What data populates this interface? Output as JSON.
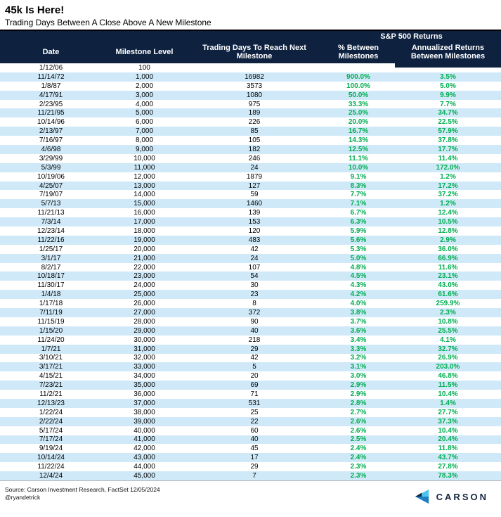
{
  "chart_data": {
    "type": "table",
    "title": "45k Is Here!",
    "subtitle": "Trading Days Between A Close Above A New Milestone",
    "group_label": "S&P 500 Returns",
    "group_label_covers": [
      "% Between Milestones",
      "Annualized Returns Between Milestones"
    ],
    "columns": [
      "Date",
      "Milestone Level",
      "Trading Days To Reach Next Milestone",
      "% Between Milestones",
      "Annualized Returns Between Milestones"
    ],
    "rows": [
      [
        "1/12/06",
        "100",
        "",
        "",
        ""
      ],
      [
        "11/14/72",
        "1,000",
        "16982",
        "900.0%",
        "3.5%"
      ],
      [
        "1/8/87",
        "2,000",
        "3573",
        "100.0%",
        "5.0%"
      ],
      [
        "4/17/91",
        "3,000",
        "1080",
        "50.0%",
        "9.9%"
      ],
      [
        "2/23/95",
        "4,000",
        "975",
        "33.3%",
        "7.7%"
      ],
      [
        "11/21/95",
        "5,000",
        "189",
        "25.0%",
        "34.7%"
      ],
      [
        "10/14/96",
        "6,000",
        "226",
        "20.0%",
        "22.5%"
      ],
      [
        "2/13/97",
        "7,000",
        "85",
        "16.7%",
        "57.9%"
      ],
      [
        "7/16/97",
        "8,000",
        "105",
        "14.3%",
        "37.8%"
      ],
      [
        "4/6/98",
        "9,000",
        "182",
        "12.5%",
        "17.7%"
      ],
      [
        "3/29/99",
        "10,000",
        "246",
        "11.1%",
        "11.4%"
      ],
      [
        "5/3/99",
        "11,000",
        "24",
        "10.0%",
        "172.0%"
      ],
      [
        "10/19/06",
        "12,000",
        "1879",
        "9.1%",
        "1.2%"
      ],
      [
        "4/25/07",
        "13,000",
        "127",
        "8.3%",
        "17.2%"
      ],
      [
        "7/19/07",
        "14,000",
        "59",
        "7.7%",
        "37.2%"
      ],
      [
        "5/7/13",
        "15,000",
        "1460",
        "7.1%",
        "1.2%"
      ],
      [
        "11/21/13",
        "16,000",
        "139",
        "6.7%",
        "12.4%"
      ],
      [
        "7/3/14",
        "17,000",
        "153",
        "6.3%",
        "10.5%"
      ],
      [
        "12/23/14",
        "18,000",
        "120",
        "5.9%",
        "12.8%"
      ],
      [
        "11/22/16",
        "19,000",
        "483",
        "5.6%",
        "2.9%"
      ],
      [
        "1/25/17",
        "20,000",
        "42",
        "5.3%",
        "36.0%"
      ],
      [
        "3/1/17",
        "21,000",
        "24",
        "5.0%",
        "66.9%"
      ],
      [
        "8/2/17",
        "22,000",
        "107",
        "4.8%",
        "11.6%"
      ],
      [
        "10/18/17",
        "23,000",
        "54",
        "4.5%",
        "23.1%"
      ],
      [
        "11/30/17",
        "24,000",
        "30",
        "4.3%",
        "43.0%"
      ],
      [
        "1/4/18",
        "25,000",
        "23",
        "4.2%",
        "61.6%"
      ],
      [
        "1/17/18",
        "26,000",
        "8",
        "4.0%",
        "259.9%"
      ],
      [
        "7/11/19",
        "27,000",
        "372",
        "3.8%",
        "2.3%"
      ],
      [
        "11/15/19",
        "28,000",
        "90",
        "3.7%",
        "10.8%"
      ],
      [
        "1/15/20",
        "29,000",
        "40",
        "3.6%",
        "25.5%"
      ],
      [
        "11/24/20",
        "30,000",
        "218",
        "3.4%",
        "4.1%"
      ],
      [
        "1/7/21",
        "31,000",
        "29",
        "3.3%",
        "32.7%"
      ],
      [
        "3/10/21",
        "32,000",
        "42",
        "3.2%",
        "26.9%"
      ],
      [
        "3/17/21",
        "33,000",
        "5",
        "3.1%",
        "203.0%"
      ],
      [
        "4/15/21",
        "34,000",
        "20",
        "3.0%",
        "46.8%"
      ],
      [
        "7/23/21",
        "35,000",
        "69",
        "2.9%",
        "11.5%"
      ],
      [
        "11/2/21",
        "36,000",
        "71",
        "2.9%",
        "10.4%"
      ],
      [
        "12/13/23",
        "37,000",
        "531",
        "2.8%",
        "1.4%"
      ],
      [
        "1/22/24",
        "38,000",
        "25",
        "2.7%",
        "27.7%"
      ],
      [
        "2/22/24",
        "39,000",
        "22",
        "2.6%",
        "37.3%"
      ],
      [
        "5/17/24",
        "40,000",
        "60",
        "2.6%",
        "10.4%"
      ],
      [
        "7/17/24",
        "41,000",
        "40",
        "2.5%",
        "20.4%"
      ],
      [
        "9/19/24",
        "42,000",
        "45",
        "2.4%",
        "11.8%"
      ],
      [
        "10/14/24",
        "43,000",
        "17",
        "2.4%",
        "43.7%"
      ],
      [
        "11/22/24",
        "44,000",
        "29",
        "2.3%",
        "27.8%"
      ],
      [
        "12/4/24",
        "45,000",
        "7",
        "2.3%",
        "78.3%"
      ]
    ]
  },
  "footer": {
    "source": "Source: Carson Investment Research, FactSet 12/05/2024",
    "handle": "@ryandetrick"
  },
  "logo": {
    "text": "CARSON"
  },
  "colors": {
    "header_bg": "#0E2240",
    "row_stripe": "#CFE9F8",
    "positive_green": "#00AE50",
    "logo_light_blue": "#4FC3EE",
    "logo_mid_blue": "#1E7FC2",
    "logo_navy": "#14263F",
    "header_text": "#FFFFFF",
    "body_text": "#000000"
  }
}
